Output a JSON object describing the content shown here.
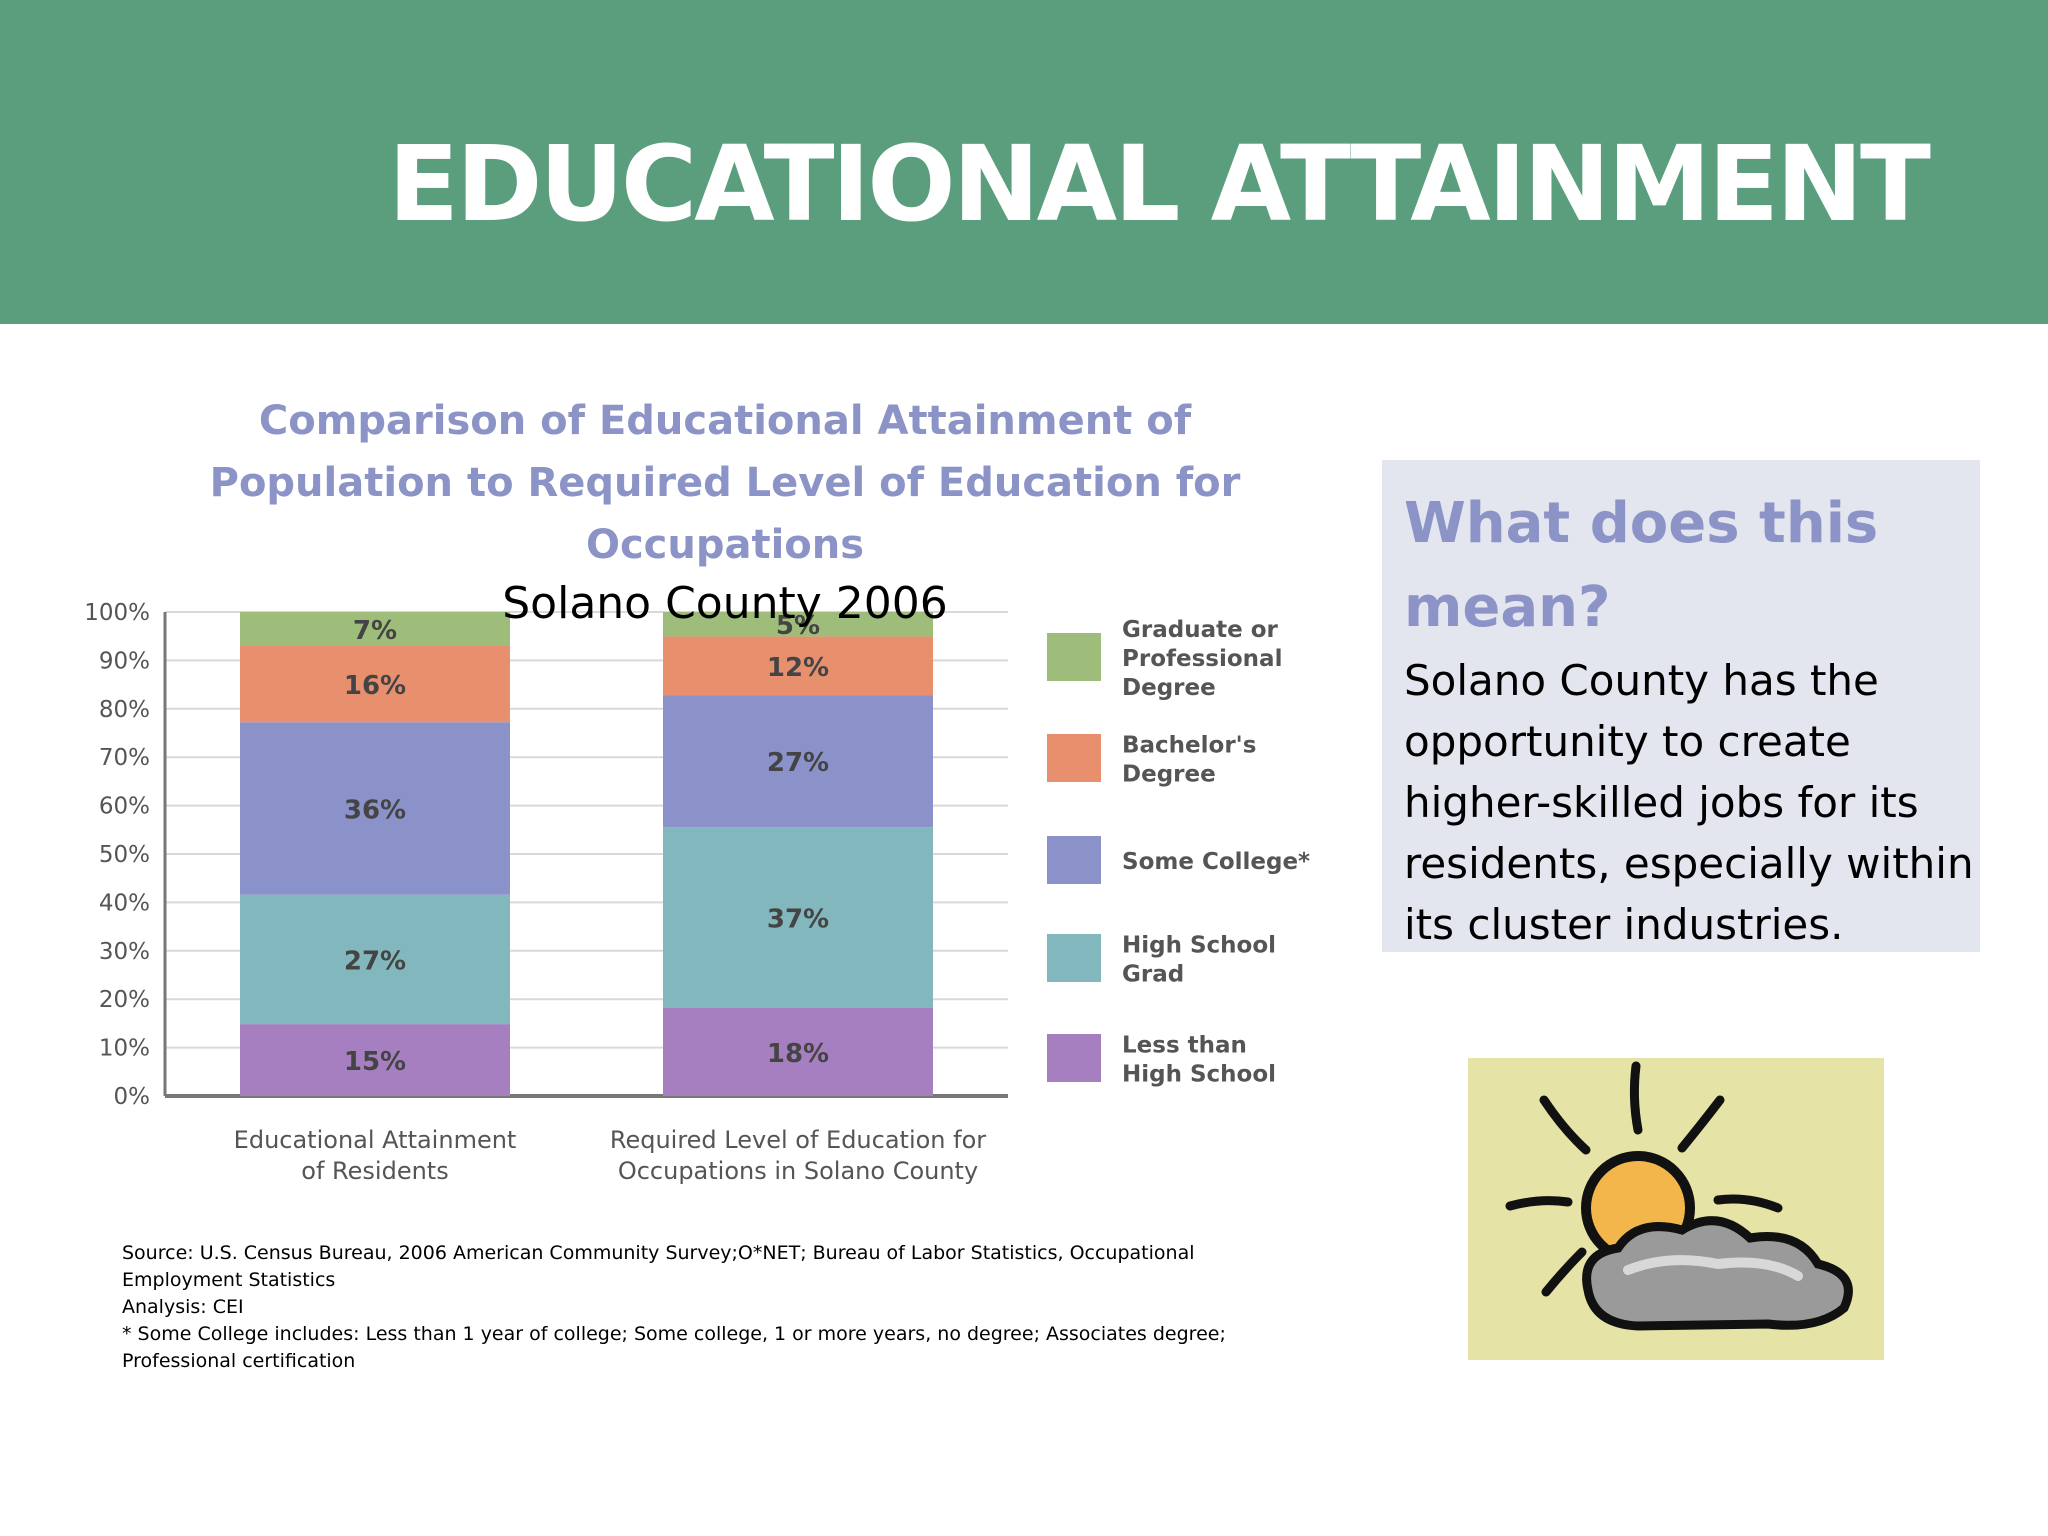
{
  "slide": {
    "title": "EDUCATIONAL ATTAINMENT"
  },
  "chart_data": {
    "type": "bar",
    "stacked": true,
    "title": "Comparison of Educational Attainment of Population to Required Level of Education for Occupations",
    "subtitle": "Solano County 2006",
    "categories": [
      "Educational Attainment of Residents",
      "Required Level of Education for Occupations in Solano County"
    ],
    "category_lines": [
      [
        "Educational Attainment",
        "of Residents"
      ],
      [
        "Required Level of Education for",
        "Occupations in Solano County"
      ]
    ],
    "series": [
      {
        "name": "Less than High School",
        "values": [
          15,
          18
        ],
        "labels": [
          "15%",
          "18%"
        ],
        "color": "#a57fbf"
      },
      {
        "name": "High School Grad",
        "values": [
          27,
          37
        ],
        "labels": [
          "27%",
          "37%"
        ],
        "color": "#82b7bd"
      },
      {
        "name": "Some College*",
        "values": [
          36,
          27
        ],
        "labels": [
          "36%",
          "27%"
        ],
        "color": "#8b91c9"
      },
      {
        "name": "Bachelor's Degree",
        "values": [
          16,
          12
        ],
        "labels": [
          "16%",
          "12%"
        ],
        "color": "#e88f6e"
      },
      {
        "name": "Graduate or Professional Degree",
        "values": [
          7,
          5
        ],
        "labels": [
          "7%",
          "5%"
        ],
        "color": "#9fbd7a"
      }
    ],
    "legend": [
      {
        "lines": [
          "Graduate or",
          "Professional",
          "Degree"
        ],
        "color": "#9fbd7a"
      },
      {
        "lines": [
          "Bachelor's",
          "Degree"
        ],
        "color": "#e88f6e"
      },
      {
        "lines": [
          "Some College*"
        ],
        "color": "#8b91c9"
      },
      {
        "lines": [
          "High School",
          "Grad"
        ],
        "color": "#82b7bd"
      },
      {
        "lines": [
          "Less than",
          "High School"
        ],
        "color": "#a57fbf"
      }
    ],
    "y_ticks": [
      "0%",
      "10%",
      "20%",
      "30%",
      "40%",
      "50%",
      "60%",
      "70%",
      "80%",
      "90%",
      "100%"
    ],
    "ylim": [
      0,
      100
    ],
    "grid": true,
    "legend_position": "right"
  },
  "info_box": {
    "heading_lines": [
      "What does this",
      "mean?"
    ],
    "body_lines": [
      "Solano County has the",
      "opportunity to create",
      "higher-skilled jobs for its",
      "residents, especially within",
      "its cluster industries."
    ]
  },
  "notes": {
    "lines": [
      "Source: U.S. Census Bureau, 2006 American Community Survey;O*NET; Bureau of Labor Statistics, Occupational",
      "Employment Statistics",
      "Analysis: CEI",
      "* Some College includes: Less than 1 year of college; Some college, 1 or more years, no degree; Associates degree;",
      "Professional certification"
    ]
  },
  "colors": {
    "header_green": "#5a9e7d",
    "accent_lavender": "#8c93c6",
    "info_box_bg": "#e3e5ef"
  },
  "illustration": {
    "icon": "sun-behind-cloud-icon"
  }
}
